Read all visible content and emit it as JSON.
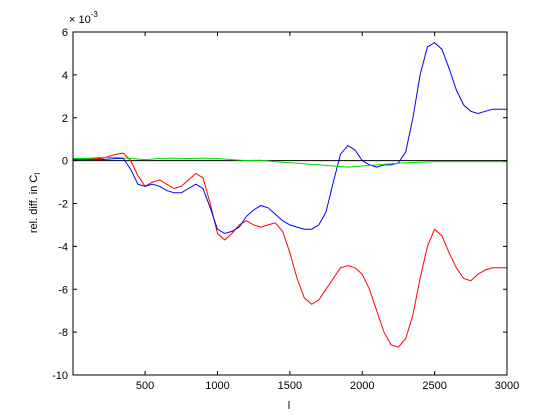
{
  "chart_data": {
    "type": "line",
    "title": "",
    "xlabel": "l",
    "ylabel": "rel. diff. in C",
    "ylabel_subscript": "l",
    "y_exponent_base": "× 10",
    "y_exponent_power": "-3",
    "xlim": [
      2,
      3000
    ],
    "ylim": [
      -10,
      6
    ],
    "grid": false,
    "xticks": [
      500,
      1000,
      1500,
      2000,
      2500,
      3000
    ],
    "xtick_labels": [
      "500",
      "1000",
      "1500",
      "2000",
      "2500",
      "3000"
    ],
    "yticks": [
      -10,
      -8,
      -6,
      -4,
      -2,
      0,
      2,
      4,
      6
    ],
    "ytick_labels": [
      "-10",
      "-8",
      "-6",
      "-4",
      "-2",
      "0",
      "2",
      "4",
      "6"
    ],
    "series": [
      {
        "color": "#000000",
        "x": [
          2,
          3000
        ],
        "y": [
          0,
          0
        ]
      },
      {
        "color": "#ff0000",
        "x": [
          2,
          100,
          200,
          300,
          350,
          400,
          450,
          500,
          550,
          600,
          650,
          700,
          750,
          800,
          850,
          900,
          950,
          1000,
          1050,
          1100,
          1150,
          1200,
          1250,
          1300,
          1350,
          1400,
          1450,
          1500,
          1550,
          1600,
          1650,
          1700,
          1750,
          1800,
          1850,
          1900,
          1950,
          2000,
          2050,
          2100,
          2150,
          2200,
          2250,
          2300,
          2350,
          2400,
          2450,
          2500,
          2550,
          2600,
          2650,
          2700,
          2750,
          2800,
          2850,
          2900,
          2950,
          3000
        ],
        "y": [
          0.1,
          0.1,
          0.1,
          0.3,
          0.35,
          0.0,
          -0.7,
          -1.2,
          -1.0,
          -0.9,
          -1.1,
          -1.3,
          -1.2,
          -0.9,
          -0.6,
          -0.8,
          -2.0,
          -3.4,
          -3.7,
          -3.4,
          -3.0,
          -2.8,
          -3.0,
          -3.1,
          -3.0,
          -2.9,
          -3.3,
          -4.3,
          -5.5,
          -6.4,
          -6.7,
          -6.5,
          -6.0,
          -5.5,
          -5.0,
          -4.9,
          -5.0,
          -5.3,
          -6.0,
          -7.0,
          -8.0,
          -8.6,
          -8.7,
          -8.3,
          -7.2,
          -5.5,
          -4.0,
          -3.2,
          -3.5,
          -4.3,
          -5.0,
          -5.5,
          -5.6,
          -5.3,
          -5.1,
          -5.0,
          -5.0,
          -5.0
        ]
      },
      {
        "color": "#0000ff",
        "x": [
          2,
          100,
          200,
          300,
          350,
          400,
          450,
          500,
          550,
          600,
          650,
          700,
          750,
          800,
          850,
          900,
          950,
          1000,
          1050,
          1100,
          1150,
          1200,
          1250,
          1300,
          1350,
          1400,
          1450,
          1500,
          1550,
          1600,
          1650,
          1700,
          1750,
          1800,
          1850,
          1900,
          1950,
          2000,
          2050,
          2100,
          2150,
          2200,
          2250,
          2300,
          2350,
          2400,
          2450,
          2500,
          2550,
          2600,
          2650,
          2700,
          2750,
          2800,
          2850,
          2900,
          2950,
          3000
        ],
        "y": [
          0.05,
          0.05,
          0.05,
          0.1,
          0.1,
          -0.4,
          -1.1,
          -1.2,
          -1.1,
          -1.2,
          -1.4,
          -1.5,
          -1.5,
          -1.3,
          -1.1,
          -1.3,
          -2.2,
          -3.2,
          -3.4,
          -3.3,
          -3.1,
          -2.6,
          -2.3,
          -2.1,
          -2.2,
          -2.5,
          -2.8,
          -3.0,
          -3.1,
          -3.2,
          -3.2,
          -3.0,
          -2.4,
          -1.0,
          0.3,
          0.7,
          0.5,
          0.0,
          -0.2,
          -0.3,
          -0.2,
          -0.2,
          -0.1,
          0.4,
          2.0,
          4.0,
          5.3,
          5.5,
          5.2,
          4.3,
          3.3,
          2.6,
          2.3,
          2.2,
          2.3,
          2.4,
          2.4,
          2.4
        ]
      },
      {
        "color": "#00dd00",
        "x": [
          2,
          100,
          200,
          300,
          400,
          500,
          600,
          700,
          800,
          900,
          1000,
          1100,
          1200,
          1300,
          1400,
          1500,
          1600,
          1700,
          1800,
          1900,
          2000,
          2100,
          2200,
          2300,
          2400,
          2500,
          2600,
          2700,
          2800,
          2900,
          3000
        ],
        "y": [
          0.1,
          0.1,
          0.15,
          0.15,
          0.1,
          0.05,
          0.1,
          0.12,
          0.1,
          0.12,
          0.1,
          0.05,
          0.0,
          0.02,
          -0.05,
          -0.1,
          -0.15,
          -0.2,
          -0.25,
          -0.3,
          -0.25,
          -0.2,
          -0.15,
          -0.1,
          -0.08,
          -0.05,
          -0.05,
          -0.05,
          -0.05,
          -0.05,
          -0.05
        ]
      }
    ]
  }
}
